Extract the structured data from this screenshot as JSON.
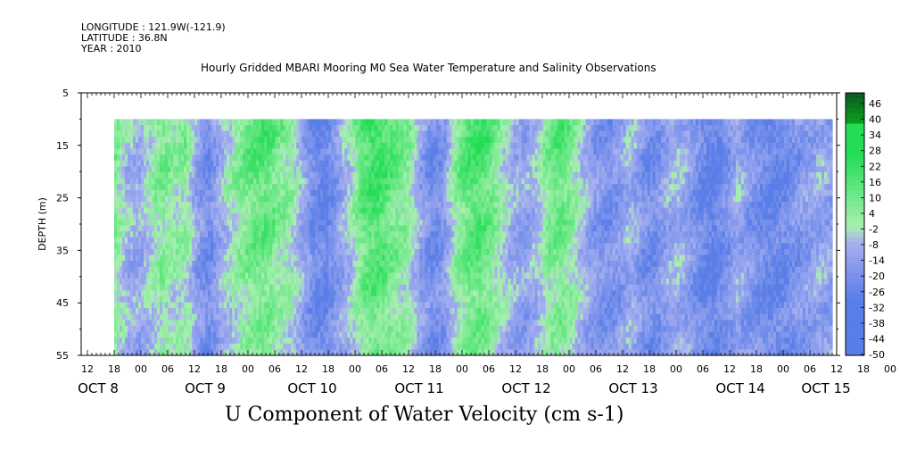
{
  "header": {
    "longitude": "LONGITUDE : 121.9W(-121.9)",
    "latitude": "LATITUDE : 36.8N",
    "year": "YEAR : 2010"
  },
  "chart_data": {
    "type": "heatmap",
    "title": "Hourly Gridded MBARI Mooring M0 Sea Water Temperature and Salinity Observations",
    "bottom_title": "U Component of Water Velocity (cm s-1)",
    "ylabel": "DEPTH (m)",
    "ylim": [
      5,
      55
    ],
    "y_inverted": true,
    "y_ticks": [
      5,
      15,
      25,
      35,
      45,
      55
    ],
    "x_hour_labels": [
      "12",
      "18",
      "00",
      "06",
      "12",
      "18",
      "00",
      "06",
      "12",
      "18",
      "00",
      "06",
      "12",
      "18",
      "00",
      "06",
      "12",
      "18",
      "00",
      "06",
      "12",
      "18",
      "00",
      "06",
      "12",
      "18",
      "00",
      "06",
      "12",
      "18",
      "00",
      "06"
    ],
    "x_day_labels": [
      "OCT  8",
      "OCT  9",
      "OCT 10",
      "OCT 11",
      "OCT 12",
      "OCT 13",
      "OCT 14",
      "OCT 15"
    ],
    "colorbar": {
      "labels": [
        "46",
        "40",
        "34",
        "28",
        "22",
        "16",
        "10",
        "4",
        "-2",
        "-8",
        "-14",
        "-20",
        "-26",
        "-32",
        "-38",
        "-44",
        "-50"
      ],
      "range": [
        -50,
        52
      ]
    },
    "data_depth_range_m": [
      10,
      55
    ],
    "data_time_range": [
      "OCT 7 18:00",
      "OCT 15 12:00"
    ],
    "value_range_cm_s": [
      -40,
      30
    ],
    "profile_period_hours": 6,
    "profile_u_by_period": [
      10,
      -5,
      -8,
      2,
      12,
      5,
      8,
      -14,
      -22,
      -6,
      4,
      14,
      18,
      20,
      10,
      6,
      -10,
      -24,
      -26,
      -12,
      -2,
      18,
      26,
      22,
      14,
      8,
      -12,
      -22,
      -16,
      8,
      20,
      24,
      16,
      2,
      -8,
      -12,
      -4,
      12,
      18,
      8,
      -6,
      -16,
      -20,
      -14,
      -6,
      -18,
      -22,
      -10,
      -6,
      -14,
      -24,
      -30,
      -20,
      -8,
      -16,
      -22,
      -26,
      -24,
      -18,
      -14,
      -8,
      -12
    ]
  },
  "colors": {
    "positive": "#22dd55",
    "near_zero": "#a8f0b0",
    "negative": "#5a7ee8"
  }
}
